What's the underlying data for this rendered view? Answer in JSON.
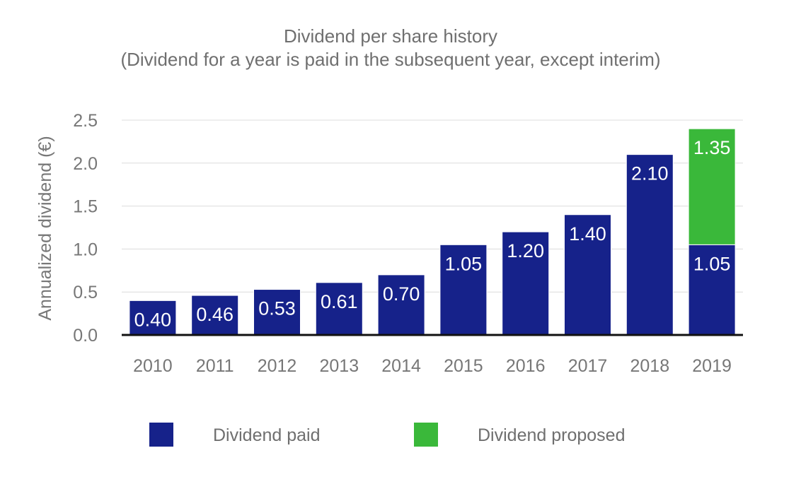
{
  "chart_data": {
    "type": "bar",
    "stacked": true,
    "title": "Dividend per share history",
    "subtitle": "(Dividend for a year is paid in the subsequent year, except interim)",
    "xlabel": "",
    "ylabel": "Annualized dividend (€)",
    "ylim": [
      0,
      2.5
    ],
    "yticks": [
      "0.0",
      "0.5",
      "1.0",
      "1.5",
      "2.0",
      "2.5"
    ],
    "grid": true,
    "legend_position": "bottom",
    "categories": [
      "2010",
      "2011",
      "2012",
      "2013",
      "2014",
      "2015",
      "2016",
      "2017",
      "2018",
      "2019"
    ],
    "series": [
      {
        "name": "Dividend paid",
        "color": "#16228a",
        "values": [
          0.4,
          0.46,
          0.53,
          0.61,
          0.7,
          1.05,
          1.2,
          1.4,
          2.1,
          1.05
        ],
        "labels": [
          "0.40",
          "0.46",
          "0.53",
          "0.61",
          "0.70",
          "1.05",
          "1.20",
          "1.40",
          "2.10",
          "1.05"
        ]
      },
      {
        "name": "Dividend proposed",
        "color": "#3ab83a",
        "values": [
          0,
          0,
          0,
          0,
          0,
          0,
          0,
          0,
          0,
          1.35
        ],
        "labels": [
          "",
          "",
          "",
          "",
          "",
          "",
          "",
          "",
          "",
          "1.35"
        ]
      }
    ]
  }
}
